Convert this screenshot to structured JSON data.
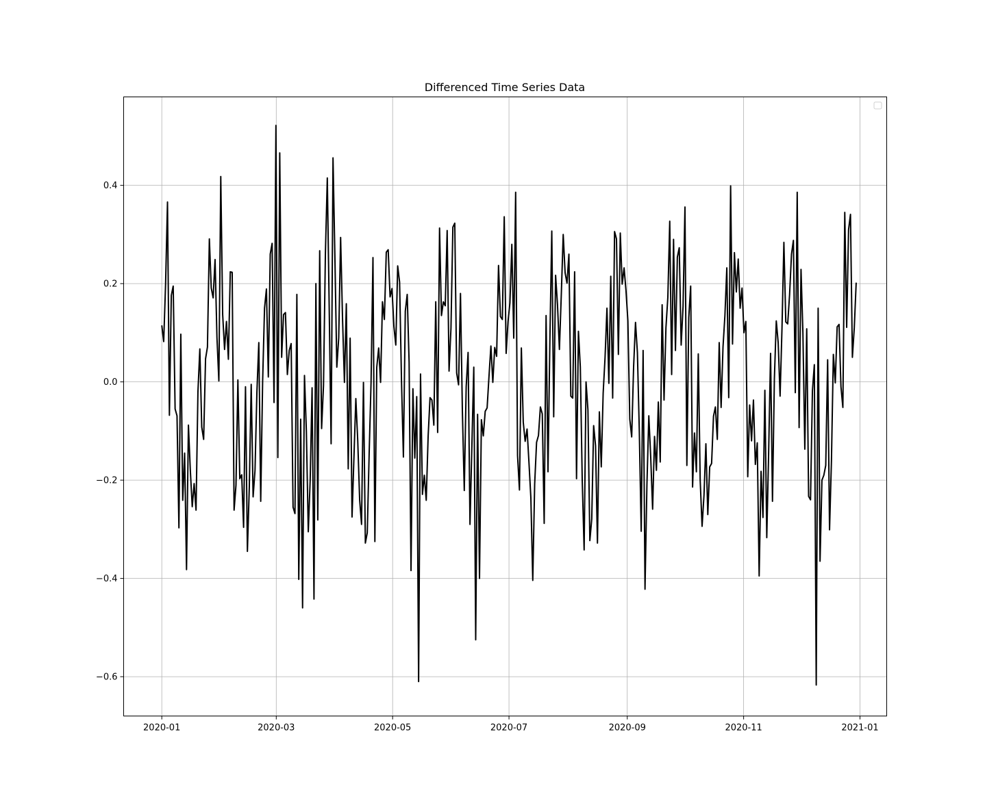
{
  "chart_data": {
    "type": "line",
    "title": "Differenced Time Series Data",
    "xlabel": "",
    "ylabel": "",
    "x_axis": {
      "type": "date",
      "start": "2020-01-01",
      "end": "2020-12-30",
      "xlim": [
        "2019-12-12",
        "2021-01-15"
      ],
      "ticks": [
        "2020-01-01",
        "2020-03-01",
        "2020-05-01",
        "2020-07-01",
        "2020-09-01",
        "2020-11-01",
        "2021-01-01"
      ],
      "tick_labels": [
        "2020-01",
        "2020-03",
        "2020-05",
        "2020-07",
        "2020-09",
        "2020-11",
        "2021-01"
      ]
    },
    "y_axis": {
      "ylim": [
        -0.68,
        0.58
      ],
      "ticks": [
        -0.6,
        -0.4,
        -0.2,
        0.0,
        0.2,
        0.4
      ],
      "tick_labels": [
        "−0.6",
        "−0.4",
        "−0.2",
        "0.0",
        "0.2",
        "0.4"
      ]
    },
    "grid": true,
    "legend": {
      "placement": "top-right",
      "entries": []
    },
    "series": [
      {
        "color": "#000000",
        "values": [
          0.115,
          0.082,
          0.2,
          0.366,
          -0.068,
          0.176,
          0.195,
          -0.055,
          -0.069,
          -0.297,
          0.097,
          -0.241,
          -0.145,
          -0.382,
          -0.088,
          -0.18,
          -0.254,
          -0.207,
          -0.261,
          -0.02,
          0.067,
          -0.092,
          -0.117,
          0.047,
          0.071,
          0.291,
          0.191,
          0.171,
          0.249,
          0.09,
          0.002,
          0.418,
          0.137,
          0.066,
          0.123,
          0.046,
          0.224,
          0.223,
          -0.261,
          -0.21,
          0.004,
          -0.197,
          -0.189,
          -0.296,
          -0.01,
          -0.345,
          -0.214,
          -0.005,
          -0.234,
          -0.18,
          -0.02,
          0.08,
          -0.243,
          0.0,
          0.15,
          0.189,
          0.01,
          0.26,
          0.282,
          -0.042,
          0.522,
          -0.154,
          0.466,
          0.05,
          0.137,
          0.141,
          0.015,
          0.064,
          0.078,
          -0.255,
          -0.268,
          0.178,
          -0.402,
          -0.076,
          -0.46,
          0.013,
          -0.101,
          -0.305,
          -0.2,
          -0.012,
          -0.442,
          0.2,
          -0.281,
          0.267,
          -0.095,
          -0.007,
          0.261,
          0.415,
          0.15,
          -0.126,
          0.456,
          0.253,
          0.03,
          0.09,
          0.294,
          0.129,
          -0.001,
          0.159,
          -0.177,
          0.089,
          -0.275,
          -0.154,
          -0.034,
          -0.12,
          -0.24,
          -0.29,
          -0.001,
          -0.328,
          -0.307,
          -0.146,
          -0.001,
          0.253,
          -0.325,
          0.03,
          0.069,
          -0.001,
          0.163,
          0.127,
          0.264,
          0.269,
          0.173,
          0.19,
          0.113,
          0.075,
          0.236,
          0.203,
          0.002,
          -0.153,
          0.144,
          0.178,
          0.04,
          -0.384,
          -0.014,
          -0.155,
          -0.03,
          -0.61,
          0.016,
          -0.229,
          -0.19,
          -0.241,
          -0.111,
          -0.032,
          -0.037,
          -0.088,
          0.163,
          -0.103,
          0.313,
          0.135,
          0.163,
          0.155,
          0.308,
          0.022,
          0.109,
          0.315,
          0.323,
          0.018,
          -0.006,
          0.18,
          -0.059,
          -0.221,
          -0.01,
          0.06,
          -0.29,
          -0.13,
          0.03,
          -0.525,
          -0.066,
          -0.4,
          -0.077,
          -0.11,
          -0.06,
          -0.053,
          0.012,
          0.073,
          -0.001,
          0.07,
          0.052,
          0.237,
          0.133,
          0.127,
          0.336,
          0.058,
          0.123,
          0.161,
          0.28,
          0.089,
          0.386,
          -0.15,
          -0.22,
          0.069,
          -0.082,
          -0.121,
          -0.096,
          -0.164,
          -0.236,
          -0.404,
          -0.208,
          -0.123,
          -0.109,
          -0.051,
          -0.065,
          -0.288,
          0.135,
          -0.183,
          0.085,
          0.307,
          -0.071,
          0.217,
          0.157,
          0.066,
          0.178,
          0.3,
          0.222,
          0.201,
          0.26,
          -0.029,
          -0.033,
          0.224,
          -0.197,
          0.103,
          0.03,
          -0.2,
          -0.342,
          0.0,
          -0.057,
          -0.323,
          -0.279,
          -0.089,
          -0.13,
          -0.328,
          -0.061,
          -0.173,
          -0.023,
          0.05,
          0.15,
          -0.003,
          0.215,
          -0.033,
          0.306,
          0.291,
          0.056,
          0.303,
          0.199,
          0.232,
          0.186,
          0.124,
          -0.076,
          -0.112,
          0.03,
          0.121,
          0.06,
          -0.1,
          -0.304,
          0.064,
          -0.422,
          -0.21,
          -0.069,
          -0.153,
          -0.259,
          -0.111,
          -0.18,
          -0.041,
          -0.163,
          0.157,
          -0.037,
          0.11,
          0.172,
          0.327,
          0.015,
          0.29,
          0.064,
          0.254,
          0.273,
          0.075,
          0.154,
          0.356,
          -0.17,
          0.131,
          0.195,
          -0.214,
          -0.104,
          -0.183,
          0.057,
          -0.2,
          -0.294,
          -0.231,
          -0.126,
          -0.27,
          -0.173,
          -0.166,
          -0.07,
          -0.051,
          -0.117,
          0.08,
          -0.052,
          0.071,
          0.135,
          0.232,
          -0.032,
          0.399,
          0.077,
          0.263,
          0.183,
          0.25,
          0.15,
          0.191,
          0.1,
          0.123,
          -0.193,
          -0.047,
          -0.12,
          -0.037,
          -0.168,
          -0.124,
          -0.395,
          -0.182,
          -0.276,
          -0.017,
          -0.317,
          -0.141,
          0.058,
          -0.243,
          0.006,
          0.124,
          0.08,
          -0.029,
          0.109,
          0.284,
          0.122,
          0.118,
          0.178,
          0.26,
          0.288,
          -0.022,
          0.386,
          -0.093,
          0.229,
          0.1,
          -0.137,
          0.108,
          -0.233,
          -0.24,
          -0.018,
          0.035,
          -0.617,
          0.15,
          -0.365,
          -0.2,
          -0.19,
          -0.17,
          0.045,
          -0.301,
          -0.16,
          0.056,
          -0.002,
          0.112,
          0.117,
          -0.01,
          -0.052,
          0.345,
          0.111,
          0.31,
          0.341,
          0.05,
          0.11,
          0.202
        ]
      }
    ]
  }
}
